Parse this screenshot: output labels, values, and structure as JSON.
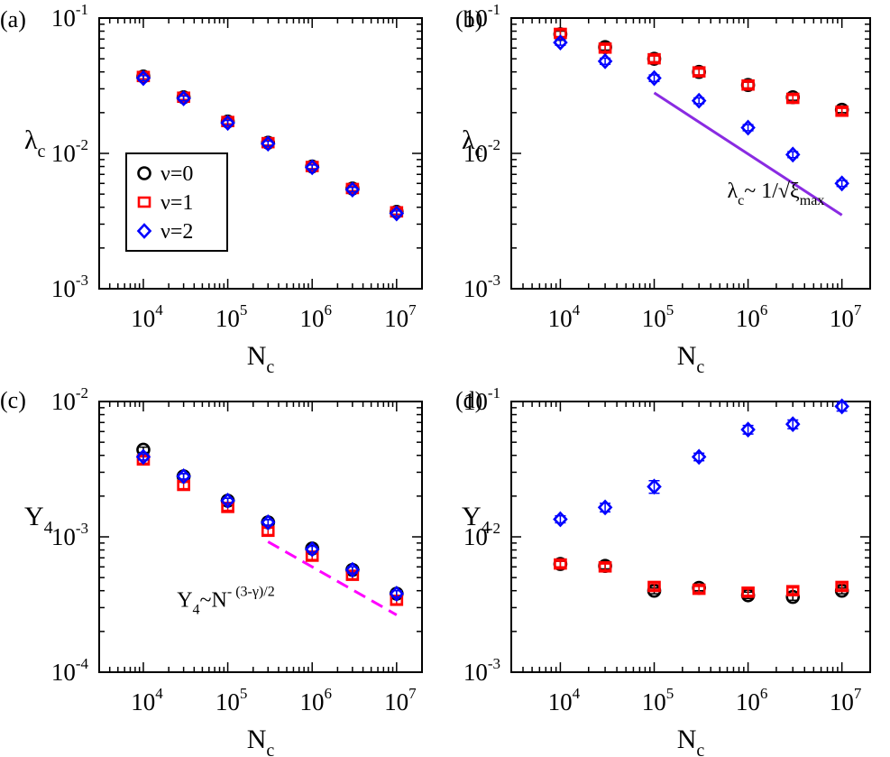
{
  "chart_data": [
    {
      "panel_label": "(a)",
      "type": "scatter",
      "xscale": "log",
      "yscale": "log",
      "xlim": [
        3000,
        20000000
      ],
      "ylim": [
        0.001,
        0.1
      ],
      "xlabel": {
        "base": "N",
        "sub": "c"
      },
      "ylabel": {
        "base": "λ",
        "sub": "c"
      },
      "xticks": [
        {
          "value": 10000,
          "base": "10",
          "exp": "4"
        },
        {
          "value": 100000,
          "base": "10",
          "exp": "5"
        },
        {
          "value": 1000000,
          "base": "10",
          "exp": "6"
        },
        {
          "value": 10000000,
          "base": "10",
          "exp": "7"
        }
      ],
      "yticks": [
        {
          "value": 0.001,
          "base": "10",
          "exp": "-3"
        },
        {
          "value": 0.01,
          "base": "10",
          "exp": "-2"
        },
        {
          "value": 0.1,
          "base": "10",
          "exp": "-1"
        }
      ],
      "legend": {
        "position": "middle-left",
        "entries": [
          {
            "symbol": "ν",
            "value": "=0"
          },
          {
            "symbol": "ν",
            "value": "=1"
          },
          {
            "symbol": "ν",
            "value": "=2"
          }
        ]
      },
      "series": [
        {
          "name": "ν=0",
          "marker": "circle",
          "color": "#000000",
          "x": [
            10000,
            30000,
            100000,
            300000,
            1000000,
            3000000,
            10000000
          ],
          "y": [
            0.037,
            0.026,
            0.0172,
            0.012,
            0.008,
            0.0055,
            0.0037
          ],
          "err": [
            0.0015,
            0.001,
            0.0007,
            0.0005,
            0.0003,
            0.0002,
            0.00015
          ]
        },
        {
          "name": "ν=1",
          "marker": "square",
          "color": "#ff0000",
          "x": [
            10000,
            30000,
            100000,
            300000,
            1000000,
            3000000,
            10000000
          ],
          "y": [
            0.037,
            0.026,
            0.0172,
            0.012,
            0.008,
            0.0055,
            0.0037
          ],
          "err": [
            0.0015,
            0.001,
            0.0007,
            0.0005,
            0.0003,
            0.0002,
            0.00015
          ]
        },
        {
          "name": "ν=2",
          "marker": "diamond",
          "color": "#0000ff",
          "x": [
            10000,
            30000,
            100000,
            300000,
            1000000,
            3000000,
            10000000
          ],
          "y": [
            0.036,
            0.0255,
            0.0168,
            0.0118,
            0.0079,
            0.0054,
            0.0036
          ],
          "err": [
            0.0015,
            0.001,
            0.0007,
            0.0005,
            0.0003,
            0.0002,
            0.00015
          ]
        }
      ],
      "lines": [],
      "annotations": []
    },
    {
      "panel_label": "(b)",
      "type": "scatter",
      "xscale": "log",
      "yscale": "log",
      "xlim": [
        3000,
        20000000
      ],
      "ylim": [
        0.001,
        0.1
      ],
      "xlabel": {
        "base": "N",
        "sub": "c"
      },
      "ylabel": {
        "base": "λ",
        "sub": "c"
      },
      "xticks": [
        {
          "value": 10000,
          "base": "10",
          "exp": "4"
        },
        {
          "value": 100000,
          "base": "10",
          "exp": "5"
        },
        {
          "value": 1000000,
          "base": "10",
          "exp": "6"
        },
        {
          "value": 10000000,
          "base": "10",
          "exp": "7"
        }
      ],
      "yticks": [
        {
          "value": 0.001,
          "base": "10",
          "exp": "-3"
        },
        {
          "value": 0.01,
          "base": "10",
          "exp": "-2"
        },
        {
          "value": 0.1,
          "base": "10",
          "exp": "-1"
        }
      ],
      "series": [
        {
          "name": "ν=0",
          "marker": "circle",
          "color": "#000000",
          "x": [
            10000,
            30000,
            100000,
            300000,
            1000000,
            3000000,
            10000000
          ],
          "y": [
            0.076,
            0.061,
            0.05,
            0.04,
            0.032,
            0.026,
            0.021
          ],
          "err": [
            0.004,
            0.003,
            0.0025,
            0.002,
            0.0016,
            0.0013,
            0.001
          ]
        },
        {
          "name": "ν=1",
          "marker": "square",
          "color": "#ff0000",
          "x": [
            10000,
            30000,
            100000,
            300000,
            1000000,
            3000000,
            10000000
          ],
          "y": [
            0.077,
            0.06,
            0.05,
            0.04,
            0.032,
            0.0255,
            0.0205
          ],
          "err": [
            0.004,
            0.003,
            0.0025,
            0.002,
            0.0016,
            0.0013,
            0.001
          ]
        },
        {
          "name": "ν=2",
          "marker": "diamond",
          "color": "#0000ff",
          "x": [
            10000,
            30000,
            100000,
            300000,
            1000000,
            3000000,
            10000000
          ],
          "y": [
            0.066,
            0.048,
            0.036,
            0.0245,
            0.0155,
            0.0098,
            0.006
          ],
          "err": [
            0.003,
            0.0025,
            0.002,
            0.0012,
            0.0008,
            0.0005,
            0.0003
          ]
        }
      ],
      "lines": [
        {
          "style": "solid",
          "color": "#8a2be2",
          "x": [
            100000,
            10000000
          ],
          "y": [
            0.028,
            0.0035
          ]
        }
      ],
      "annotations": [
        {
          "pos": [
            600000,
            0.0047
          ],
          "parts": [
            {
              "t": "λ"
            },
            {
              "t": "c",
              "sub": true
            },
            {
              "t": "~ 1/√ξ"
            },
            {
              "t": "max",
              "sub": true
            }
          ]
        }
      ]
    },
    {
      "panel_label": "(c)",
      "type": "scatter",
      "xscale": "log",
      "yscale": "log",
      "xlim": [
        3000,
        20000000
      ],
      "ylim": [
        0.0001,
        0.01
      ],
      "xlabel": {
        "base": "N",
        "sub": "c"
      },
      "ylabel": {
        "base": "Y",
        "sub": "4"
      },
      "xticks": [
        {
          "value": 10000,
          "base": "10",
          "exp": "4"
        },
        {
          "value": 100000,
          "base": "10",
          "exp": "5"
        },
        {
          "value": 1000000,
          "base": "10",
          "exp": "6"
        },
        {
          "value": 10000000,
          "base": "10",
          "exp": "7"
        }
      ],
      "yticks": [
        {
          "value": 0.0001,
          "base": "10",
          "exp": "-4"
        },
        {
          "value": 0.001,
          "base": "10",
          "exp": "-3"
        },
        {
          "value": 0.01,
          "base": "10",
          "exp": "-2"
        }
      ],
      "series": [
        {
          "name": "ν=0",
          "marker": "circle",
          "color": "#000000",
          "x": [
            10000,
            30000,
            100000,
            300000,
            1000000,
            3000000,
            10000000
          ],
          "y": [
            0.0044,
            0.0028,
            0.00185,
            0.00128,
            0.00082,
            0.00057,
            0.00038
          ],
          "err": [
            0.0002,
            0.00013,
            8e-05,
            6e-05,
            4e-05,
            3e-05,
            2e-05
          ]
        },
        {
          "name": "ν=1",
          "marker": "square",
          "color": "#ff0000",
          "x": [
            10000,
            30000,
            100000,
            300000,
            1000000,
            3000000,
            10000000
          ],
          "y": [
            0.0037,
            0.0024,
            0.00165,
            0.0011,
            0.00072,
            0.00052,
            0.00034
          ],
          "err": [
            0.0002,
            0.00013,
            8e-05,
            6e-05,
            4e-05,
            3e-05,
            2e-05
          ]
        },
        {
          "name": "ν=2",
          "marker": "diamond",
          "color": "#0000ff",
          "x": [
            10000,
            30000,
            100000,
            300000,
            1000000,
            3000000,
            10000000
          ],
          "y": [
            0.0039,
            0.0028,
            0.00185,
            0.00128,
            0.00081,
            0.00057,
            0.00038
          ],
          "err": [
            0.0002,
            0.00013,
            8e-05,
            6e-05,
            4e-05,
            3e-05,
            2e-05
          ]
        }
      ],
      "lines": [
        {
          "style": "dashed",
          "color": "#ff00ff",
          "x": [
            300000,
            10000000
          ],
          "y": [
            0.00092,
            0.000265
          ]
        }
      ],
      "annotations": [
        {
          "pos": [
            25000,
            0.000305
          ],
          "parts": [
            {
              "t": "Y"
            },
            {
              "t": "4",
              "sub": true
            },
            {
              "t": "~N"
            },
            {
              "t": "- (3-γ)/2",
              "sup": true
            }
          ]
        }
      ]
    },
    {
      "panel_label": "(d)",
      "type": "scatter",
      "xscale": "log",
      "yscale": "log",
      "xlim": [
        3000,
        20000000
      ],
      "ylim": [
        0.001,
        0.1
      ],
      "xlabel": {
        "base": "N",
        "sub": "c"
      },
      "ylabel": {
        "base": "Y",
        "sub": "4"
      },
      "xticks": [
        {
          "value": 10000,
          "base": "10",
          "exp": "4"
        },
        {
          "value": 100000,
          "base": "10",
          "exp": "5"
        },
        {
          "value": 1000000,
          "base": "10",
          "exp": "6"
        },
        {
          "value": 10000000,
          "base": "10",
          "exp": "7"
        }
      ],
      "yticks": [
        {
          "value": 0.001,
          "base": "10",
          "exp": "-3"
        },
        {
          "value": 0.01,
          "base": "10",
          "exp": "-2"
        },
        {
          "value": 0.1,
          "base": "10",
          "exp": "-1"
        }
      ],
      "series": [
        {
          "name": "ν=0",
          "marker": "circle",
          "color": "#000000",
          "x": [
            10000,
            30000,
            100000,
            300000,
            1000000,
            3000000,
            10000000
          ],
          "y": [
            0.0063,
            0.0061,
            0.004,
            0.0042,
            0.0037,
            0.0036,
            0.004
          ],
          "err": [
            0.0003,
            0.0003,
            0.0002,
            0.0002,
            0.0002,
            0.0002,
            0.0002
          ]
        },
        {
          "name": "ν=1",
          "marker": "square",
          "color": "#ff0000",
          "x": [
            10000,
            30000,
            100000,
            300000,
            1000000,
            3000000,
            10000000
          ],
          "y": [
            0.0063,
            0.006,
            0.0043,
            0.0041,
            0.0039,
            0.004,
            0.0043
          ],
          "err": [
            0.0003,
            0.0003,
            0.0002,
            0.0002,
            0.0002,
            0.0002,
            0.0002
          ]
        },
        {
          "name": "ν=2",
          "marker": "diamond",
          "color": "#0000ff",
          "x": [
            10000,
            30000,
            100000,
            300000,
            1000000,
            3000000,
            10000000
          ],
          "y": [
            0.0135,
            0.0165,
            0.0235,
            0.039,
            0.062,
            0.068,
            0.092
          ],
          "err": [
            0.0008,
            0.0012,
            0.0025,
            0.0025,
            0.0045,
            0.005,
            0.007
          ]
        }
      ],
      "lines": [],
      "annotations": []
    }
  ]
}
